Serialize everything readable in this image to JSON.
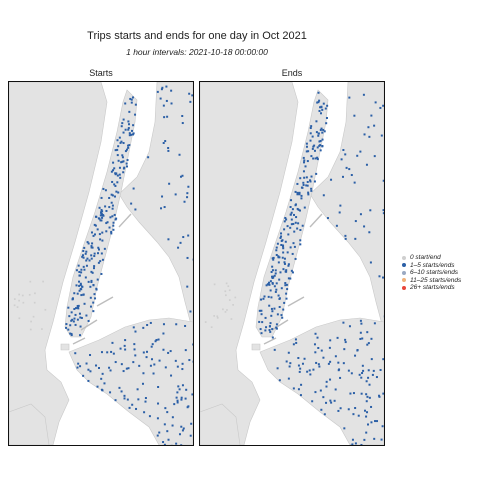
{
  "title": "Trips starts and ends for one day in Oct 2021",
  "subtitle": "1 hour intervals: 2021-10-18 00:00:00",
  "panels": [
    {
      "label": "Starts",
      "seed": 11
    },
    {
      "label": "Ends",
      "seed": 29
    }
  ],
  "legend": {
    "items": [
      {
        "label": "0 start/end",
        "color": "#cfcfcf"
      },
      {
        "label": "1–5 starts/ends",
        "color": "#2b5fa6"
      },
      {
        "label": "6–10 starts/ends",
        "color": "#9aa9c2"
      },
      {
        "label": "11–25 starts/ends",
        "color": "#f0b27a"
      },
      {
        "label": "26+ starts/ends",
        "color": "#e8463a"
      }
    ]
  },
  "colors": {
    "land": "#e3e3e3",
    "water": "#ffffff",
    "station": "#2b5fa6",
    "empty_station": "#cfcfcf"
  }
}
